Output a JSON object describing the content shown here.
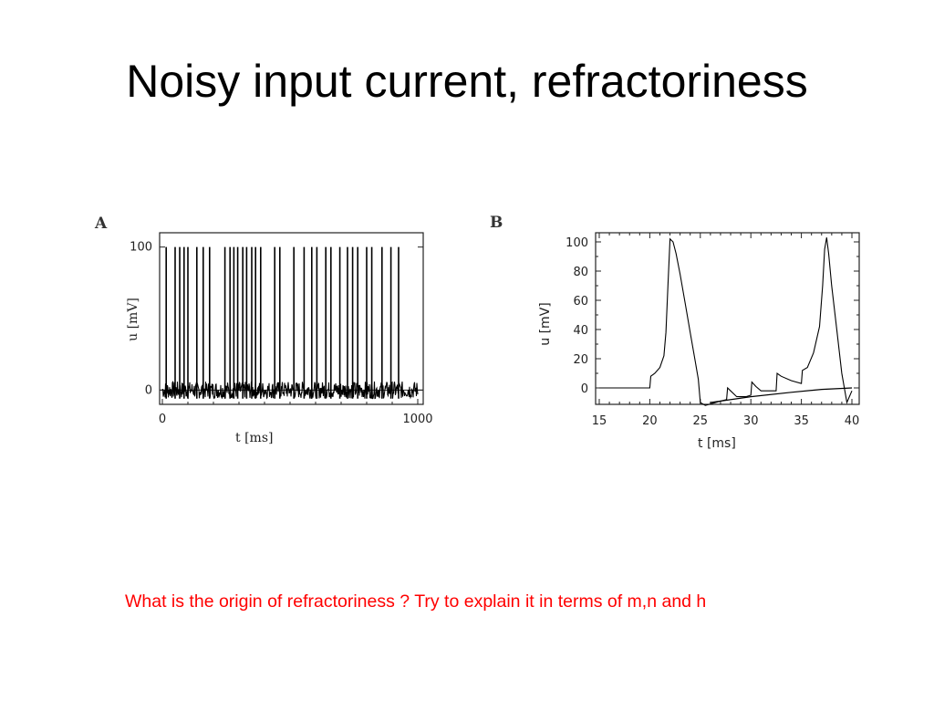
{
  "slide": {
    "title": "Noisy input current, refractoriness",
    "question": "What is the origin of refractoriness ? Try to explain it in terms of m,n and h"
  },
  "colors": {
    "title": "#000000",
    "question": "#ff0000",
    "trace": "#000000"
  },
  "chart_data": [
    {
      "panel": "A",
      "type": "line",
      "xlabel": "t  [ms]",
      "ylabel": "u [mV]",
      "xlim": [
        0,
        1000
      ],
      "ylim": [
        -10,
        110
      ],
      "x_ticks": [
        0,
        1000
      ],
      "y_ticks": [
        0,
        100
      ],
      "grid": false,
      "series": [
        {
          "description_hidden": true,
          "spike_times": [
            15,
            50,
            68,
            85,
            100,
            135,
            160,
            185,
            245,
            265,
            280,
            295,
            315,
            330,
            350,
            365,
            385,
            440,
            460,
            515,
            555,
            585,
            605,
            640,
            660,
            695,
            725,
            745,
            765,
            800,
            820,
            860,
            895,
            925
          ],
          "spike_peak": 100,
          "baseline": 0,
          "noise_amplitude": 6
        }
      ]
    },
    {
      "panel": "B",
      "type": "line",
      "xlabel": "t [ms]",
      "ylabel": "u  [mV]",
      "xlim": [
        15,
        40
      ],
      "ylim": [
        -15,
        105
      ],
      "x_ticks": [
        15,
        20,
        25,
        30,
        35,
        40
      ],
      "y_ticks": [
        0,
        20,
        40,
        60,
        80,
        100
      ],
      "grid": false,
      "series": [
        {
          "x": [
            15,
            20,
            20.1,
            20.5,
            21,
            21.4,
            21.6,
            21.8,
            22,
            22.3,
            22.6,
            23,
            23.5,
            24,
            24.5,
            24.8,
            25,
            25.5,
            26,
            27,
            27.6,
            27.7,
            28,
            28.6,
            29.5,
            30,
            30.1,
            30.5,
            31,
            32,
            32.5,
            32.6,
            33,
            34,
            35,
            35.1,
            35.6,
            36.2,
            36.8,
            37.1,
            37.3,
            37.5,
            37.7,
            38,
            38.5,
            39,
            39.5,
            40
          ],
          "y": [
            0,
            0,
            8,
            10,
            14,
            22,
            38,
            70,
            102,
            100,
            92,
            78,
            58,
            38,
            18,
            6,
            -10,
            -12,
            -11,
            -9,
            -8,
            0,
            -2,
            -6,
            -6,
            -5,
            4,
            1,
            -2,
            -2,
            -2,
            10,
            8,
            5,
            3,
            12,
            14,
            24,
            42,
            70,
            95,
            103,
            92,
            70,
            40,
            10,
            -10,
            -2
          ]
        },
        {
          "x": [
            26,
            30,
            34,
            37,
            40
          ],
          "y": [
            -10,
            -6,
            -3,
            -1,
            0
          ]
        }
      ]
    }
  ]
}
